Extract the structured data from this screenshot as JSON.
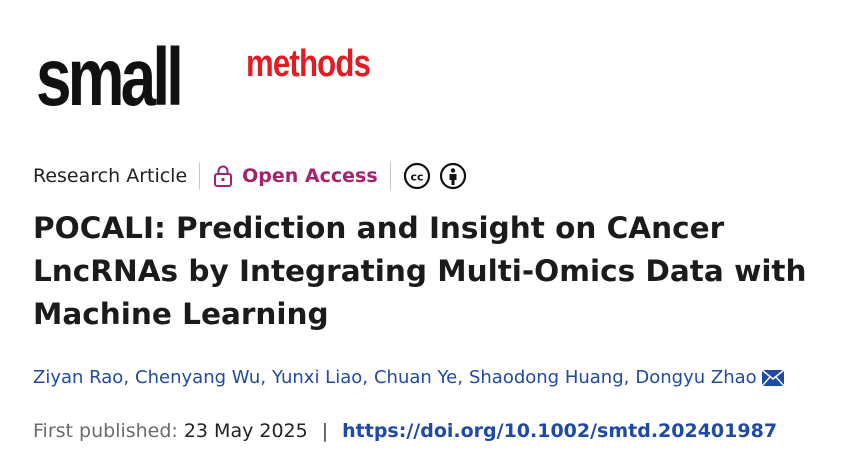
{
  "journal": {
    "logo_primary": "small",
    "logo_secondary": "methods",
    "brand_color": "#e31b23"
  },
  "meta": {
    "article_type": "Research Article",
    "access_label": "Open Access",
    "access_color": "#a5226e",
    "icons": [
      "lock-icon",
      "creative-commons-icon",
      "attribution-icon"
    ]
  },
  "article": {
    "title": "POCALI: Prediction and Insight on CAncer LncRNAs by Integrating Multi-Omics Data with Machine Learning"
  },
  "authors": {
    "list": [
      "Ziyan Rao",
      "Chenyang Wu",
      "Yunxi Liao",
      "Chuan Ye",
      "Shaodong Huang",
      "Dongyu Zhao"
    ],
    "separator": ",",
    "link_color": "#1f4aa3"
  },
  "publication": {
    "label": "First published:",
    "date": "23 May 2025",
    "separator": "|",
    "doi": "https://doi.org/10.1002/smtd.202401987"
  }
}
